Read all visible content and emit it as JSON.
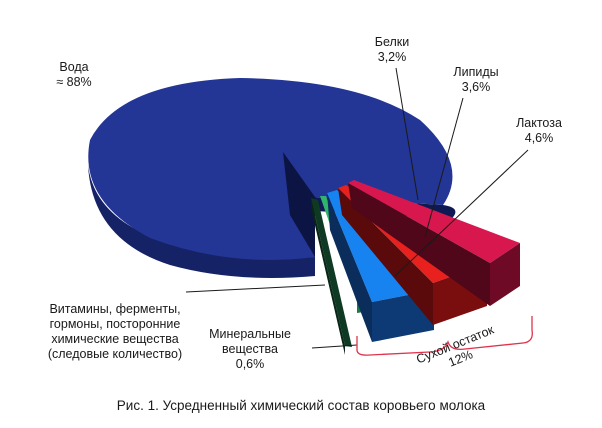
{
  "chart_data": {
    "type": "pie",
    "title": "",
    "slices": [
      {
        "key": "water",
        "name": "Вода",
        "value_text": "≈ 88%",
        "value": 88.0,
        "color": "#1f2d8a"
      },
      {
        "key": "proteins",
        "name": "Белки",
        "value_text": "3,2%",
        "value": 3.2,
        "color": "#d8174f"
      },
      {
        "key": "lipids",
        "name": "Липиды",
        "value_text": "3,6%",
        "value": 3.6,
        "color": "#e8211f"
      },
      {
        "key": "lactose",
        "name": "Лактоза",
        "value_text": "4,6%",
        "value": 4.6,
        "color": "#1683f0"
      },
      {
        "key": "minerals",
        "name_lines": [
          "Минеральные",
          "вещества"
        ],
        "value_text": "0,6%",
        "value": 0.6,
        "color": "#2fb36d"
      },
      {
        "key": "vitamins",
        "name_lines": [
          "Витамины, ферменты,",
          "гормоны, посторонние",
          "химические вещества",
          "(следовые количество)"
        ],
        "value": 0.0,
        "color": "#0e3a24"
      }
    ],
    "group": {
      "label": "Сухой остаток",
      "value_text": "12%"
    }
  },
  "caption": "Рис. 1. Усредненный химический состав коровьего молока"
}
